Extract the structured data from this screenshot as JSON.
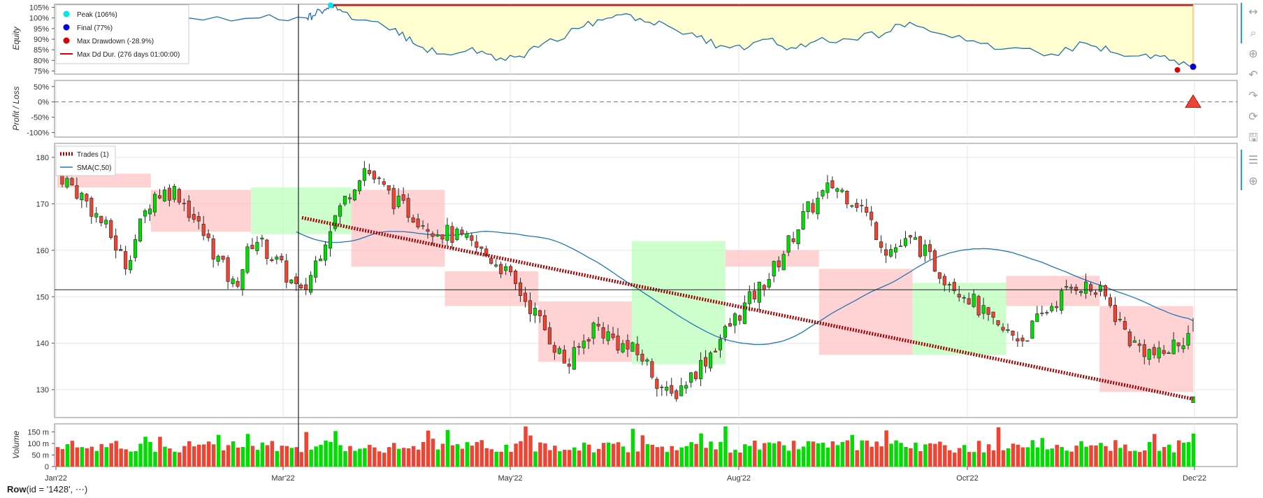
{
  "chart_data": {
    "type": "candlestick",
    "x_ticks": [
      "Jan'22",
      "Mar'22",
      "May'22",
      "Aug'22",
      "Oct'22",
      "Dec'22"
    ],
    "panels": {
      "equity": {
        "ylabel": "Equity",
        "yticks": [
          "105%",
          "100%",
          "95%",
          "90%",
          "85%",
          "80%",
          "75%"
        ],
        "legend": [
          {
            "label": "Peak (106%)",
            "color": "#00e5ee",
            "kind": "dot"
          },
          {
            "label": "Final (77%)",
            "color": "#0000dd",
            "kind": "dot"
          },
          {
            "label": "Max Drawdown (-28.9%)",
            "color": "#dd0000",
            "kind": "dot"
          },
          {
            "label": "Max Dd Dur. (276 days 01:00:00)",
            "color": "#dd0000",
            "kind": "line"
          }
        ],
        "peak": 106,
        "final": 77,
        "max_drawdown_pct": -28.9
      },
      "pl": {
        "ylabel": "Profit / Loss",
        "yticks": [
          "50%",
          "0%",
          "-50%",
          "-100%"
        ],
        "trade_pl": 0
      },
      "ohlc": {
        "yticks": [
          "180",
          "170",
          "160",
          "150",
          "140",
          "130"
        ],
        "legend": [
          {
            "label": "Trades (1)",
            "color": "#a00000",
            "kind": "dashed"
          },
          {
            "label": "SMA(C,50)",
            "color": "#1f77b4",
            "kind": "line"
          }
        ],
        "trade": {
          "entry_price": 167,
          "exit_price": 128
        }
      },
      "volume": {
        "ylabel": "Volume",
        "yticks": [
          "150 m",
          "100 m",
          "50 m",
          "0"
        ]
      }
    }
  },
  "status": {
    "row_prefix": "Row",
    "row_rest": "(id = '1428', ⋯)"
  },
  "toolbar": [
    {
      "name": "pan-icon",
      "glyph": "↔"
    },
    {
      "name": "zoom-icon",
      "glyph": "⌕"
    },
    {
      "name": "wheel-zoom-icon",
      "glyph": "⊕"
    },
    {
      "name": "undo-icon",
      "glyph": "↶"
    },
    {
      "name": "redo-icon",
      "glyph": "↷"
    },
    {
      "name": "reset-icon",
      "glyph": "⟳"
    },
    {
      "name": "save-icon",
      "glyph": "🖫"
    },
    {
      "name": "hover-icon",
      "glyph": "☰"
    },
    {
      "name": "crosshair-icon",
      "glyph": "⊕"
    }
  ],
  "colors": {
    "up": "#00dd00",
    "down": "#ee4433",
    "sma": "#1f77b4",
    "equity": "#1f6fb4"
  }
}
